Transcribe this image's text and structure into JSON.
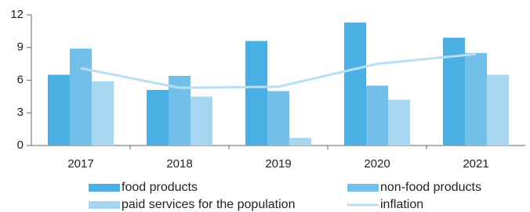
{
  "chart_data": {
    "type": "bar",
    "categories": [
      "2017",
      "2018",
      "2019",
      "2020",
      "2021"
    ],
    "series": [
      {
        "name": "food products",
        "color": "#4ab0e4",
        "values": [
          6.5,
          5.1,
          9.6,
          11.3,
          9.9
        ]
      },
      {
        "name": "non-food products",
        "color": "#72c0ea",
        "values": [
          8.9,
          6.4,
          5.0,
          5.5,
          8.5
        ]
      },
      {
        "name": "paid services for the population",
        "color": "#a6d6f2",
        "values": [
          5.9,
          4.5,
          0.7,
          4.2,
          6.5
        ]
      },
      {
        "name": "inflation",
        "type": "line",
        "color": "#b9def4",
        "values": [
          7.1,
          5.3,
          5.4,
          7.5,
          8.4
        ]
      }
    ],
    "ylim": [
      0,
      12
    ],
    "yticks": [
      0,
      3,
      6,
      9,
      12
    ],
    "grid": false
  }
}
